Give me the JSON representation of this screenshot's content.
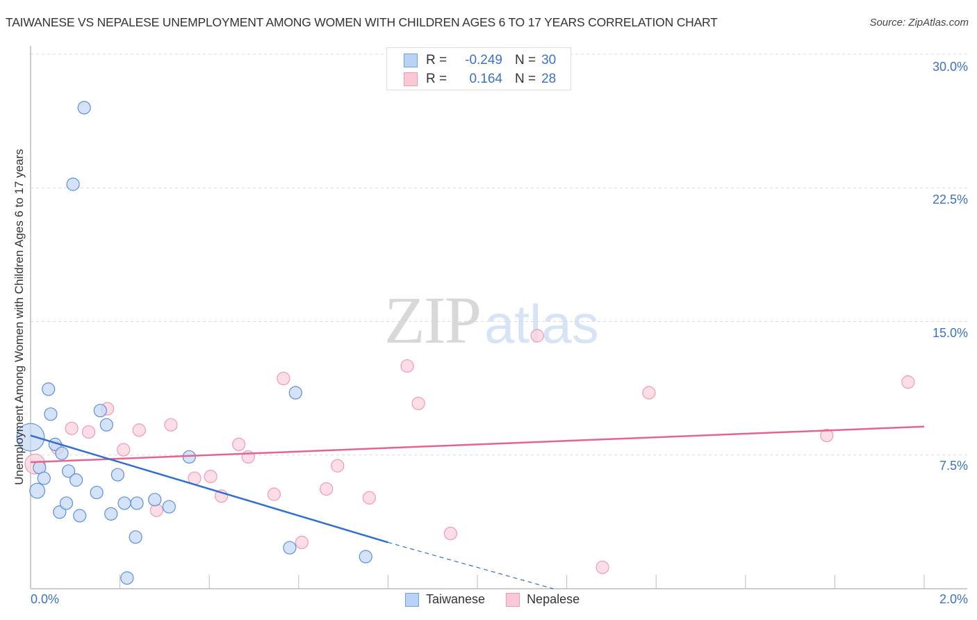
{
  "header": {
    "title": "TAIWANESE VS NEPALESE UNEMPLOYMENT AMONG WOMEN WITH CHILDREN AGES 6 TO 17 YEARS CORRELATION CHART",
    "source": "Source: ZipAtlas.com"
  },
  "watermark": {
    "zip": "ZIP",
    "atlas": "atlas"
  },
  "axes": {
    "ylabel": "Unemployment Among Women with Children Ages 6 to 17 years",
    "yticks": [
      "30.0%",
      "22.5%",
      "15.0%",
      "7.5%"
    ],
    "xticks": [
      "0.0%",
      "2.0%"
    ]
  },
  "legend": {
    "rows": [
      {
        "swatch_color": "#b8d3f5",
        "border_color": "#6fa0e0",
        "r_label": "R =",
        "r_value": "-0.249",
        "n_label": "N =",
        "n_value": "30"
      },
      {
        "swatch_color": "#fbc8d6",
        "border_color": "#ef9ab4",
        "r_label": "R =",
        "r_value": "0.164",
        "n_label": "N =",
        "n_value": "28"
      }
    ]
  },
  "bottom_legend": {
    "items": [
      {
        "label": "Taiwanese",
        "color": "#b8d3f5",
        "border": "#6fa0e0"
      },
      {
        "label": "Nepalese",
        "color": "#fbc8d6",
        "border": "#ef9ab4"
      }
    ]
  },
  "colors": {
    "taiwanese_fill": "#c5daf5",
    "taiwanese_stroke": "#5b8fdb",
    "taiwanese_line": "#2f6fd0",
    "nepalese_fill": "#fcd3df",
    "nepalese_stroke": "#ee9ab3",
    "nepalese_line": "#e4648f",
    "tick_label": "#3a72c9"
  },
  "chart_data": {
    "type": "scatter",
    "title": "TAIWANESE VS NEPALESE UNEMPLOYMENT AMONG WOMEN WITH CHILDREN AGES 6 TO 17 YEARS CORRELATION CHART",
    "xlabel": "",
    "ylabel": "Unemployment Among Women with Children Ages 6 to 17 years",
    "xlim": [
      0,
      2.0
    ],
    "ylim": [
      0,
      30.0
    ],
    "x_unit": "%",
    "y_unit": "%",
    "yticks": [
      7.5,
      15.0,
      22.5,
      30.0
    ],
    "xticks": [
      0.0,
      2.0
    ],
    "grid": "horizontal dashed",
    "legend_position": "top-center",
    "series": [
      {
        "name": "Taiwanese",
        "R": -0.249,
        "N": 30,
        "trend": {
          "x0": 0.0,
          "y0": 8.6,
          "x1": 0.8,
          "y1": 2.6,
          "dashed_extension_to": {
            "x": 1.17,
            "y": 0.0
          }
        },
        "points": [
          {
            "x": 0.0,
            "y": 8.5,
            "size": 22
          },
          {
            "x": 0.015,
            "y": 5.5,
            "size": 12
          },
          {
            "x": 0.02,
            "y": 6.8,
            "size": 10
          },
          {
            "x": 0.03,
            "y": 6.2,
            "size": 10
          },
          {
            "x": 0.04,
            "y": 11.2,
            "size": 10
          },
          {
            "x": 0.045,
            "y": 9.8,
            "size": 10
          },
          {
            "x": 0.055,
            "y": 8.1,
            "size": 10
          },
          {
            "x": 0.065,
            "y": 4.3,
            "size": 10
          },
          {
            "x": 0.07,
            "y": 7.6,
            "size": 10
          },
          {
            "x": 0.08,
            "y": 4.8,
            "size": 10
          },
          {
            "x": 0.085,
            "y": 6.6,
            "size": 10
          },
          {
            "x": 0.102,
            "y": 6.1,
            "size": 10
          },
          {
            "x": 0.11,
            "y": 4.1,
            "size": 10
          },
          {
            "x": 0.12,
            "y": 27.0,
            "size": 10
          },
          {
            "x": 0.095,
            "y": 22.7,
            "size": 10
          },
          {
            "x": 0.148,
            "y": 5.4,
            "size": 10
          },
          {
            "x": 0.156,
            "y": 10.0,
            "size": 10
          },
          {
            "x": 0.17,
            "y": 9.2,
            "size": 10
          },
          {
            "x": 0.18,
            "y": 4.2,
            "size": 10
          },
          {
            "x": 0.195,
            "y": 6.4,
            "size": 10
          },
          {
            "x": 0.21,
            "y": 4.8,
            "size": 10
          },
          {
            "x": 0.216,
            "y": 0.6,
            "size": 10
          },
          {
            "x": 0.235,
            "y": 2.9,
            "size": 10
          },
          {
            "x": 0.238,
            "y": 4.8,
            "size": 10
          },
          {
            "x": 0.278,
            "y": 5.0,
            "size": 10
          },
          {
            "x": 0.31,
            "y": 4.6,
            "size": 10
          },
          {
            "x": 0.355,
            "y": 7.4,
            "size": 10
          },
          {
            "x": 0.58,
            "y": 2.3,
            "size": 10
          },
          {
            "x": 0.593,
            "y": 11.0,
            "size": 10
          },
          {
            "x": 0.75,
            "y": 1.8,
            "size": 10
          }
        ]
      },
      {
        "name": "Nepalese",
        "R": 0.164,
        "N": 28,
        "trend": {
          "x0": 0.0,
          "y0": 7.1,
          "x1": 2.0,
          "y1": 9.1
        },
        "points": [
          {
            "x": 0.01,
            "y": 7.0,
            "size": 16
          },
          {
            "x": 0.06,
            "y": 7.9,
            "size": 10
          },
          {
            "x": 0.092,
            "y": 9.0,
            "size": 10
          },
          {
            "x": 0.13,
            "y": 8.8,
            "size": 10
          },
          {
            "x": 0.172,
            "y": 10.1,
            "size": 10
          },
          {
            "x": 0.208,
            "y": 7.8,
            "size": 10
          },
          {
            "x": 0.243,
            "y": 8.9,
            "size": 10
          },
          {
            "x": 0.282,
            "y": 4.4,
            "size": 10
          },
          {
            "x": 0.314,
            "y": 9.2,
            "size": 10
          },
          {
            "x": 0.367,
            "y": 6.2,
            "size": 10
          },
          {
            "x": 0.403,
            "y": 6.3,
            "size": 10
          },
          {
            "x": 0.427,
            "y": 5.2,
            "size": 10
          },
          {
            "x": 0.466,
            "y": 8.1,
            "size": 10
          },
          {
            "x": 0.487,
            "y": 7.4,
            "size": 10
          },
          {
            "x": 0.545,
            "y": 5.3,
            "size": 10
          },
          {
            "x": 0.566,
            "y": 11.8,
            "size": 10
          },
          {
            "x": 0.607,
            "y": 2.6,
            "size": 10
          },
          {
            "x": 0.662,
            "y": 5.6,
            "size": 10
          },
          {
            "x": 0.687,
            "y": 6.9,
            "size": 10
          },
          {
            "x": 0.758,
            "y": 5.1,
            "size": 10
          },
          {
            "x": 0.843,
            "y": 12.5,
            "size": 10
          },
          {
            "x": 0.868,
            "y": 10.4,
            "size": 10
          },
          {
            "x": 0.94,
            "y": 3.1,
            "size": 10
          },
          {
            "x": 1.134,
            "y": 14.2,
            "size": 10
          },
          {
            "x": 1.28,
            "y": 1.2,
            "size": 10
          },
          {
            "x": 1.384,
            "y": 11.0,
            "size": 10
          },
          {
            "x": 1.782,
            "y": 8.6,
            "size": 10
          },
          {
            "x": 1.964,
            "y": 11.6,
            "size": 10
          }
        ]
      }
    ]
  }
}
